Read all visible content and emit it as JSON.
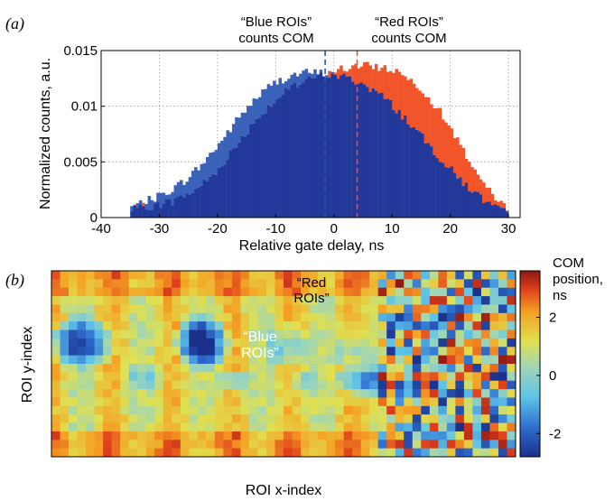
{
  "panel_a": {
    "label": "(a)",
    "annot_blue": [
      "“Blue ROIs”",
      "counts COM"
    ],
    "annot_red": [
      "“Red ROIs”",
      "counts COM"
    ]
  },
  "panel_b": {
    "label": "(b)",
    "annot_red": [
      "“Red",
      "ROIs”"
    ],
    "annot_blue": [
      "“Blue",
      "ROIs”"
    ],
    "colorbar_title": [
      "COM",
      "position,",
      "ns"
    ]
  },
  "colors": {
    "hist_blue": "#3a62b8",
    "hist_dark": "#22399a",
    "hist_red": "#f2552a",
    "com_blue_line": "#2e55a8",
    "com_red_line": "#e8502a"
  },
  "chart_data": [
    {
      "type": "bar",
      "title": "",
      "xlabel": "Relative gate delay, ns",
      "ylabel": "Normalized counts, a.u.",
      "xlim": [
        -40,
        32
      ],
      "ylim": [
        0,
        0.015
      ],
      "xticks": [
        -40,
        -30,
        -20,
        -10,
        0,
        10,
        20,
        30
      ],
      "xtick_labels": [
        "-40",
        "-30",
        "-20",
        "-10",
        "0",
        "10",
        "20",
        "30"
      ],
      "yticks": [
        0,
        0.005,
        0.01,
        0.015
      ],
      "ytick_labels": [
        "0",
        "0.005",
        "0.01",
        "0.015"
      ],
      "grid": true,
      "bin_range": [
        -35,
        30
      ],
      "series": [
        {
          "x": [
            -35,
            -33,
            -31,
            -29,
            -27,
            -25,
            -23,
            -21,
            -19,
            -17,
            -15,
            -13,
            -11,
            -9,
            -7,
            -5,
            -3,
            -1,
            1,
            3,
            5,
            7,
            9,
            11,
            13,
            15,
            17,
            19,
            21,
            23,
            25,
            27,
            29
          ],
          "values": [
            0.0009,
            0.0013,
            0.0017,
            0.0022,
            0.0028,
            0.0036,
            0.0046,
            0.0058,
            0.0071,
            0.0085,
            0.0098,
            0.0109,
            0.0118,
            0.0124,
            0.0128,
            0.013,
            0.013,
            0.0129,
            0.0127,
            0.0124,
            0.012,
            0.0114,
            0.0106,
            0.0096,
            0.0085,
            0.0073,
            0.0061,
            0.0049,
            0.0038,
            0.0028,
            0.0019,
            0.0011,
            0.0005
          ]
        },
        {
          "x": [
            -35,
            -33,
            -31,
            -29,
            -27,
            -25,
            -23,
            -21,
            -19,
            -17,
            -15,
            -13,
            -11,
            -9,
            -7,
            -5,
            -3,
            -1,
            1,
            3,
            5,
            7,
            9,
            11,
            13,
            15,
            17,
            19,
            21,
            23,
            25,
            27,
            29
          ],
          "values": [
            0.0007,
            0.0009,
            0.0011,
            0.0013,
            0.0016,
            0.0021,
            0.0028,
            0.0037,
            0.0049,
            0.0063,
            0.0077,
            0.009,
            0.0101,
            0.011,
            0.0117,
            0.0122,
            0.0126,
            0.013,
            0.0133,
            0.0135,
            0.0136,
            0.0136,
            0.0134,
            0.0131,
            0.0125,
            0.0116,
            0.0104,
            0.0089,
            0.0072,
            0.0054,
            0.0036,
            0.0021,
            0.001
          ]
        }
      ],
      "vlines": [
        {
          "x": -1.5
        },
        {
          "x": 4
        }
      ]
    },
    {
      "type": "heatmap",
      "title": "",
      "xlabel": "ROI x-index",
      "ylabel": "ROI y-index",
      "colorbar_range": [
        -2.8,
        3.6
      ],
      "colorbar_ticks": [
        -2,
        0,
        2
      ],
      "colorbar_tick_labels": [
        "-2",
        "0",
        "2"
      ],
      "rows": 22,
      "cols": 54,
      "model": "blocks of 7 columns with blue blobs in centres; columns >= 38 noisy/random"
    }
  ]
}
